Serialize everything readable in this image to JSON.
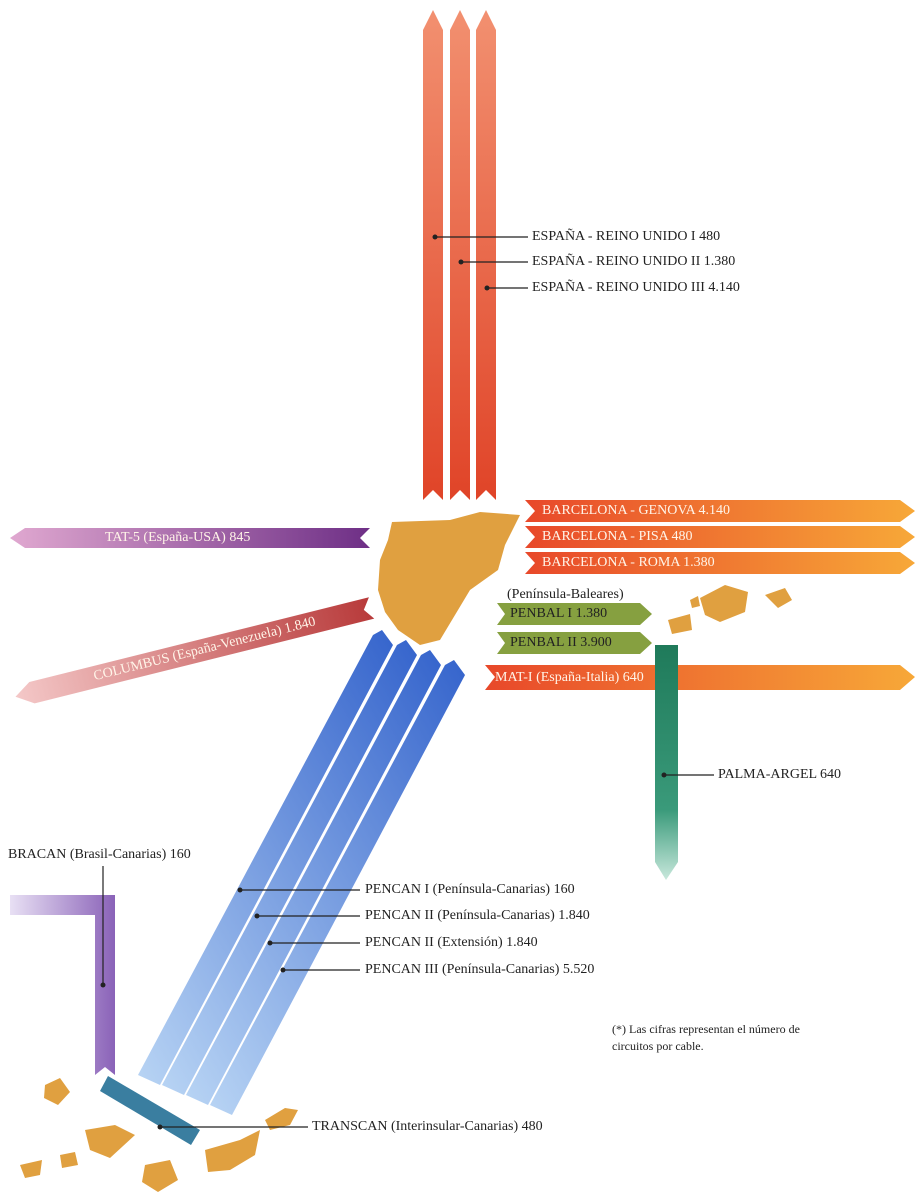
{
  "uk_cables": [
    "ESPAÑA - REINO UNIDO I 480",
    "ESPAÑA - REINO UNIDO II 1.380",
    "ESPAÑA - REINO UNIDO III 4.140"
  ],
  "tat5": "TAT-5 (España-USA) 845",
  "columbus": "COLUMBUS (España-Venezuela) 1.840",
  "barcelona": [
    "BARCELONA - GENOVA 4.140",
    "BARCELONA - PISA 480",
    "BARCELONA - ROMA 1.380"
  ],
  "penbal_region": "(Península-Baleares)",
  "penbal": [
    "PENBAL I 1.380",
    "PENBAL II 3.900"
  ],
  "mat1": "MAT-I (España-Italia) 640",
  "palma_argel": "PALMA-ARGEL 640",
  "bracan": "BRACAN (Brasil-Canarias) 160",
  "pencan": [
    "PENCAN I (Península-Canarias) 160",
    "PENCAN II (Península-Canarias) 1.840",
    "PENCAN II (Extensión) 1.840",
    "PENCAN III (Península-Canarias) 5.520"
  ],
  "transcan": "TRANSCAN (Interinsular-Canarias) 480",
  "note": [
    "(*) Las cifras representan el número de",
    "circuitos por cable."
  ]
}
